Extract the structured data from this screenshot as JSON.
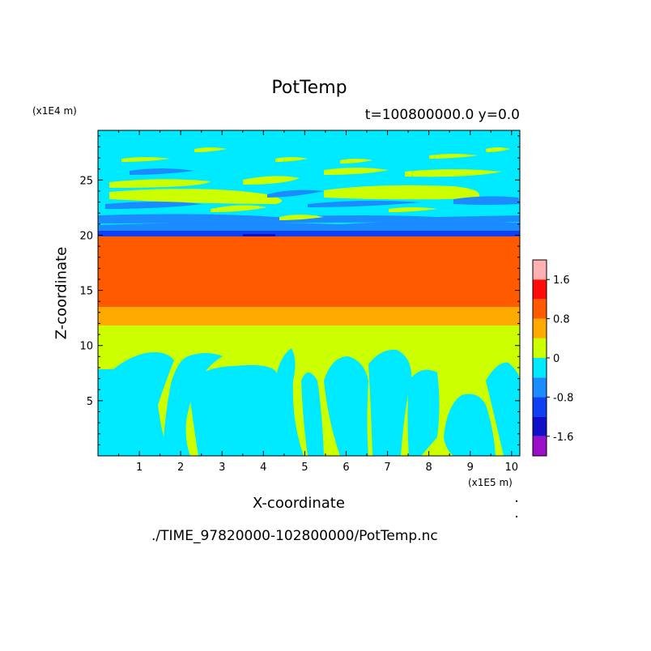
{
  "chart_data": {
    "type": "heatmap",
    "title": "PotTemp",
    "subtitle": "t=100800000.0 y=0.0",
    "xlabel": "X-coordinate",
    "ylabel": "Z-coordinate",
    "x_unit": "(x1E5 m)",
    "y_unit": "(x1E4 m)",
    "xlim": [
      0,
      10.2
    ],
    "ylim": [
      0,
      29.5
    ],
    "x_ticks": [
      1,
      2,
      3,
      4,
      5,
      6,
      7,
      8,
      9,
      10
    ],
    "y_ticks": [
      5,
      10,
      15,
      20,
      25
    ],
    "colorbar": {
      "levels": [
        -2.0,
        -1.6,
        -1.2,
        -0.8,
        -0.4,
        0,
        0.4,
        0.8,
        1.2,
        1.6,
        2.0
      ],
      "colors": [
        "#9a10c8",
        "#0f10c8",
        "#1040f4",
        "#1a8cff",
        "#00eaff",
        "#ccff00",
        "#ffaa00",
        "#ff5a00",
        "#ff0a0a",
        "#ffb0b0"
      ],
      "tick_labels": [
        "1.6",
        "0.8",
        "0",
        "-0.8",
        "-1.6"
      ],
      "tick_values": [
        1.6,
        0.8,
        0,
        -0.8,
        -1.6
      ]
    },
    "layers": [
      {
        "z": [
          0,
          12
        ],
        "value": 0.2,
        "description": "lower troposphere: mixed cyan (about -0.2) and yellow-green (about 0.2) convective plumes"
      },
      {
        "z": [
          12,
          13.5
        ],
        "value": 0.6
      },
      {
        "z": [
          13.5,
          20.2
        ],
        "value": 1.0
      },
      {
        "z": [
          20.2,
          21.5
        ],
        "value": -1.0
      },
      {
        "z": [
          21.5,
          29.5
        ],
        "value": -0.2,
        "description": "upper layer: banded cyan / yellow-green / blue waves"
      }
    ]
  },
  "footer": {
    "filepath": "./TIME_97820000-102800000/PotTemp.nc"
  }
}
